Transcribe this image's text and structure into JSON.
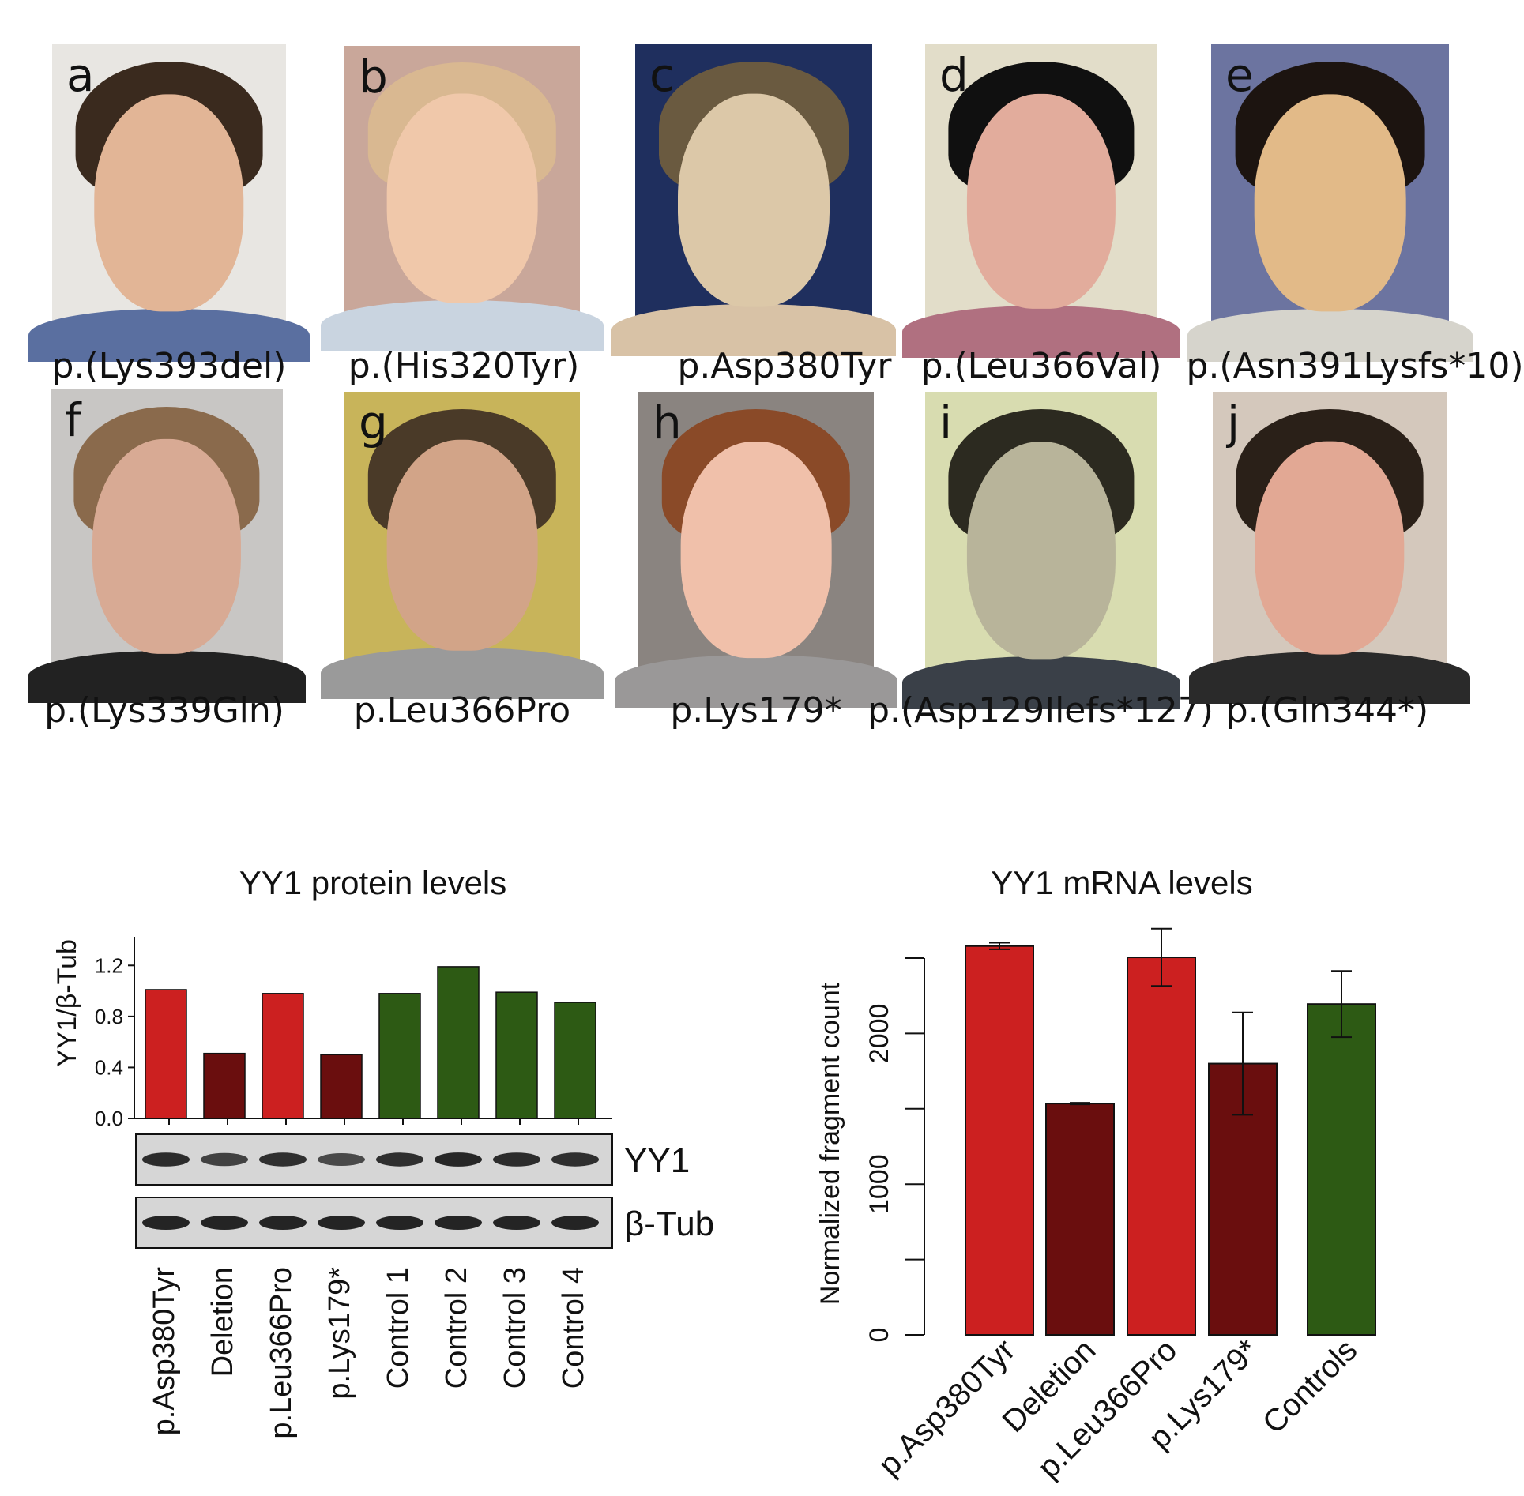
{
  "panels": [
    {
      "letter": "a",
      "caption": "p.(Lys393del)",
      "bg": "#e8e6e2",
      "skin": "#e2b596",
      "hair": "#3a2a1e",
      "shirt": "#5a6fa0"
    },
    {
      "letter": "b",
      "caption": "p.(His320Tyr)",
      "bg": "#c9a79a",
      "skin": "#f0c8aa",
      "hair": "#d9b891",
      "shirt": "#c9d4e0"
    },
    {
      "letter": "c",
      "caption": "p.Asp380Tyr",
      "bg": "#1f2f5e",
      "skin": "#dcc8a8",
      "hair": "#6a5a40",
      "shirt": "#d8c2a6"
    },
    {
      "letter": "d",
      "caption": "p.(Leu366Val)",
      "bg": "#e2ddc9",
      "skin": "#e2ac9c",
      "hair": "#101010",
      "shirt": "#b07080"
    },
    {
      "letter": "e",
      "caption": "p.(Asn391Lysfs*10)",
      "bg": "#6c74a0",
      "skin": "#e2ba88",
      "hair": "#1c1410",
      "shirt": "#d6d4cc"
    },
    {
      "letter": "f",
      "caption": "p.(Lys339Gln)",
      "bg": "#c8c6c4",
      "skin": "#d8aa94",
      "hair": "#8a6a4c",
      "shirt": "#222222"
    },
    {
      "letter": "g",
      "caption": "p.Leu366Pro",
      "bg": "#c8b45a",
      "skin": "#d2a488",
      "hair": "#4a3a28",
      "shirt": "#9a9a9a"
    },
    {
      "letter": "h",
      "caption": "p.Lys179*",
      "bg": "#8a8480",
      "skin": "#f0c0aa",
      "hair": "#8a4a28",
      "shirt": "#9a9898"
    },
    {
      "letter": "i",
      "caption": "p.(Asp129Ilefs*127)",
      "bg": "#d8dcb0",
      "skin": "#b8b49a",
      "hair": "#2c2a20",
      "shirt": "#3a4048"
    },
    {
      "letter": "j",
      "caption": "p.(Gln344*)",
      "bg": "#d4c8bc",
      "skin": "#e2a894",
      "hair": "#2a2018",
      "shirt": "#2a2a2a"
    }
  ],
  "chart_data": [
    {
      "type": "bar",
      "title": "YY1 protein levels",
      "ylabel": "YY1/β-Tub",
      "xlabel": "",
      "ylim": [
        0,
        1.4
      ],
      "yticks": [
        "0.0",
        "0.4",
        "0.8",
        "1.2"
      ],
      "categories": [
        "p.Asp380Tyr",
        "Deletion",
        "p.Leu366Pro",
        "p.Lys179*",
        "Control 1",
        "Control 2",
        "Control 3",
        "Control 4"
      ],
      "values": [
        1.01,
        0.51,
        0.98,
        0.5,
        0.98,
        1.19,
        0.99,
        0.91
      ],
      "colors": [
        "#cc2020",
        "#6a0e0e",
        "#cc2020",
        "#6a0e0e",
        "#2d5a14",
        "#2d5a14",
        "#2d5a14",
        "#2d5a14"
      ],
      "blots": [
        {
          "label": "YY1",
          "intensities": [
            0.9,
            0.6,
            0.85,
            0.5,
            0.85,
            0.95,
            0.9,
            0.85
          ]
        },
        {
          "label": "β-Tub",
          "intensities": [
            1,
            1,
            1,
            1,
            1,
            1,
            1,
            1
          ]
        }
      ]
    },
    {
      "type": "bar",
      "title": "YY1 mRNA levels",
      "ylabel": "Normalized fragment count",
      "xlabel": "",
      "ylim": [
        0,
        2550
      ],
      "yticks": [
        "0",
        "1000",
        "2000"
      ],
      "categories": [
        "p.Asp380Tyr",
        "Deletion",
        "p.Leu366Pro",
        "p.Lys179*",
        "Controls"
      ],
      "values": [
        2580,
        1535,
        2505,
        1800,
        2195
      ],
      "errors": [
        22,
        5,
        190,
        340,
        220
      ],
      "colors": [
        "#cc2020",
        "#6a0e0e",
        "#cc2020",
        "#6a0e0e",
        "#2d5a14"
      ]
    }
  ]
}
